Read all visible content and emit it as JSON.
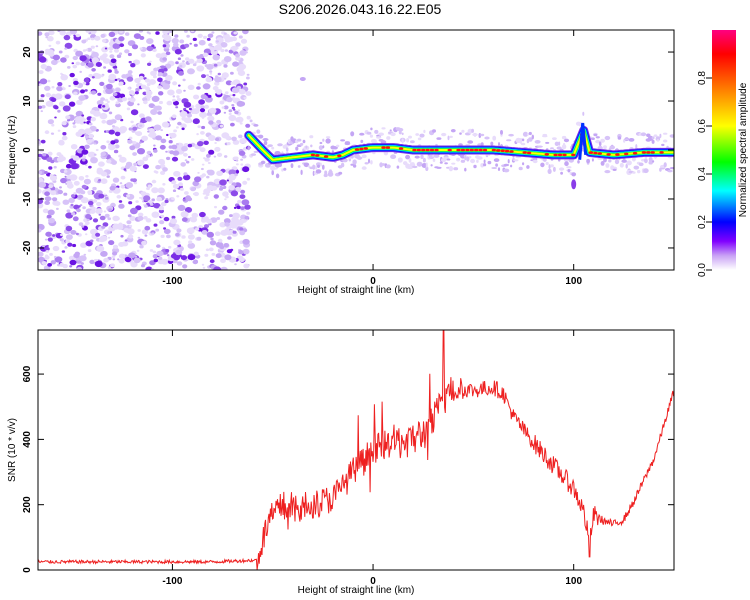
{
  "title": "S206.2026.043.16.22.E05",
  "chart_data": [
    {
      "type": "heatmap",
      "name": "spectrogram",
      "xlabel": "Height of straight line (km)",
      "ylabel": "Frequency (Hz)",
      "xlim": [
        -167,
        150
      ],
      "ylim": [
        -24.5,
        24.5
      ],
      "xticks": [
        "-100",
        "0",
        "100"
      ],
      "yticks": [
        "-20",
        "-10",
        "0",
        "10",
        "20"
      ],
      "colorbar": {
        "label": "Normalized spectral amplitude",
        "range": [
          0,
          1
        ],
        "ticks": [
          "0.0",
          "0.2",
          "0.4",
          "0.6",
          "0.8"
        ],
        "colors": [
          "#ffffff",
          "#8000ff",
          "#0000ff",
          "#00ffff",
          "#00ff00",
          "#ffff00",
          "#ff8000",
          "#ff0000",
          "#ff0080"
        ]
      },
      "noise_region_x": [
        -167,
        -62
      ],
      "signal_start_x": -62,
      "signal_track": [
        {
          "x": -62,
          "y": 3
        },
        {
          "x": -55,
          "y": 0
        },
        {
          "x": -50,
          "y": -2
        },
        {
          "x": -40,
          "y": -1.5
        },
        {
          "x": -30,
          "y": -1
        },
        {
          "x": -20,
          "y": -1.5
        },
        {
          "x": -15,
          "y": -1
        },
        {
          "x": -10,
          "y": 0
        },
        {
          "x": 0,
          "y": 0.5
        },
        {
          "x": 10,
          "y": 0.5
        },
        {
          "x": 20,
          "y": 0
        },
        {
          "x": 40,
          "y": 0
        },
        {
          "x": 60,
          "y": 0
        },
        {
          "x": 75,
          "y": -0.5
        },
        {
          "x": 90,
          "y": -1
        },
        {
          "x": 100,
          "y": -1
        },
        {
          "x": 103,
          "y": 2
        },
        {
          "x": 105,
          "y": 4
        },
        {
          "x": 108,
          "y": -0.5
        },
        {
          "x": 120,
          "y": -1
        },
        {
          "x": 135,
          "y": -0.5
        },
        {
          "x": 150,
          "y": -0.5
        }
      ]
    },
    {
      "type": "line",
      "name": "snr",
      "xlabel": "Height of straight line (km)",
      "ylabel": "SNR (10 * v/v)",
      "xlim": [
        -167,
        150
      ],
      "ylim": [
        0,
        735
      ],
      "xticks": [
        "-100",
        "0",
        "100"
      ],
      "yticks": [
        "0",
        "200",
        "400",
        "600"
      ],
      "color": "#ee2020",
      "series": [
        {
          "name": "SNR",
          "points": [
            {
              "x": -167,
              "y": 25
            },
            {
              "x": -140,
              "y": 25
            },
            {
              "x": -110,
              "y": 25
            },
            {
              "x": -80,
              "y": 25
            },
            {
              "x": -58,
              "y": 30
            },
            {
              "x": -52,
              "y": 150
            },
            {
              "x": -45,
              "y": 200
            },
            {
              "x": -40,
              "y": 180
            },
            {
              "x": -30,
              "y": 200
            },
            {
              "x": -20,
              "y": 220
            },
            {
              "x": -10,
              "y": 300
            },
            {
              "x": 0,
              "y": 370
            },
            {
              "x": 10,
              "y": 390
            },
            {
              "x": 20,
              "y": 400
            },
            {
              "x": 28,
              "y": 430
            },
            {
              "x": 35,
              "y": 520
            },
            {
              "x": 40,
              "y": 560
            },
            {
              "x": 50,
              "y": 550
            },
            {
              "x": 60,
              "y": 560
            },
            {
              "x": 65,
              "y": 540
            },
            {
              "x": 70,
              "y": 470
            },
            {
              "x": 80,
              "y": 390
            },
            {
              "x": 90,
              "y": 320
            },
            {
              "x": 100,
              "y": 250
            },
            {
              "x": 105,
              "y": 180
            },
            {
              "x": 108,
              "y": 80
            },
            {
              "x": 110,
              "y": 170
            },
            {
              "x": 115,
              "y": 150
            },
            {
              "x": 120,
              "y": 140
            },
            {
              "x": 125,
              "y": 155
            },
            {
              "x": 130,
              "y": 210
            },
            {
              "x": 140,
              "y": 340
            },
            {
              "x": 150,
              "y": 550
            }
          ]
        }
      ],
      "annotations": [
        {
          "x": -48,
          "y": 430,
          "note": "spike"
        },
        {
          "x": 35,
          "y": 735,
          "note": "peak"
        },
        {
          "x": 108,
          "y": 40,
          "note": "dip"
        }
      ]
    }
  ]
}
